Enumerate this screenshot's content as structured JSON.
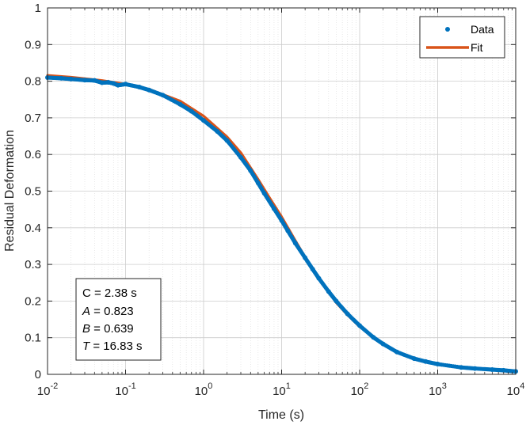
{
  "chart_data": {
    "type": "scatter",
    "xscale": "log",
    "xlabel": "Time (s)",
    "ylabel": "Residual Deformation",
    "xlim": [
      0.01,
      10000
    ],
    "ylim": [
      0,
      1
    ],
    "grid": true,
    "minor_grid": true,
    "x_ticks": [
      {
        "value": 0.01,
        "base": "10",
        "exp": "-2"
      },
      {
        "value": 0.1,
        "base": "10",
        "exp": "-1"
      },
      {
        "value": 1,
        "base": "10",
        "exp": "0"
      },
      {
        "value": 10,
        "base": "10",
        "exp": "1"
      },
      {
        "value": 100,
        "base": "10",
        "exp": "2"
      },
      {
        "value": 1000,
        "base": "10",
        "exp": "3"
      },
      {
        "value": 10000,
        "base": "10",
        "exp": "4"
      }
    ],
    "y_ticks": [
      {
        "value": 0,
        "label": "0"
      },
      {
        "value": 0.1,
        "label": "0.1"
      },
      {
        "value": 0.2,
        "label": "0.2"
      },
      {
        "value": 0.3,
        "label": "0.3"
      },
      {
        "value": 0.4,
        "label": "0.4"
      },
      {
        "value": 0.5,
        "label": "0.5"
      },
      {
        "value": 0.6,
        "label": "0.6"
      },
      {
        "value": 0.7,
        "label": "0.7"
      },
      {
        "value": 0.8,
        "label": "0.8"
      },
      {
        "value": 0.9,
        "label": "0.9"
      },
      {
        "value": 1,
        "label": "1"
      }
    ],
    "legend_position": "top-right",
    "series": [
      {
        "name": "Data",
        "style": "markers",
        "color": "#0072BD",
        "points": [
          [
            0.01,
            0.81
          ],
          [
            0.015,
            0.808
          ],
          [
            0.02,
            0.806
          ],
          [
            0.03,
            0.803
          ],
          [
            0.04,
            0.802
          ],
          [
            0.05,
            0.796
          ],
          [
            0.06,
            0.797
          ],
          [
            0.07,
            0.794
          ],
          [
            0.08,
            0.789
          ],
          [
            0.1,
            0.792
          ],
          [
            0.15,
            0.784
          ],
          [
            0.2,
            0.776
          ],
          [
            0.3,
            0.762
          ],
          [
            0.5,
            0.737
          ],
          [
            0.7,
            0.718
          ],
          [
            1,
            0.693
          ],
          [
            1.5,
            0.663
          ],
          [
            2,
            0.638
          ],
          [
            3,
            0.592
          ],
          [
            4,
            0.556
          ],
          [
            5,
            0.522
          ],
          [
            6,
            0.494
          ],
          [
            8,
            0.452
          ],
          [
            10,
            0.42
          ],
          [
            12,
            0.392
          ],
          [
            15,
            0.358
          ],
          [
            20,
            0.318
          ],
          [
            25,
            0.287
          ],
          [
            30,
            0.262
          ],
          [
            40,
            0.226
          ],
          [
            50,
            0.2
          ],
          [
            70,
            0.165
          ],
          [
            100,
            0.133
          ],
          [
            150,
            0.101
          ],
          [
            200,
            0.083
          ],
          [
            300,
            0.061
          ],
          [
            500,
            0.043
          ],
          [
            700,
            0.035
          ],
          [
            1000,
            0.028
          ],
          [
            2000,
            0.019
          ],
          [
            3000,
            0.016
          ],
          [
            5000,
            0.013
          ],
          [
            7000,
            0.011
          ],
          [
            10000,
            0.008
          ]
        ]
      },
      {
        "name": "Fit",
        "style": "line",
        "color": "#D95319",
        "points": [
          [
            0.01,
            0.816
          ],
          [
            0.02,
            0.811
          ],
          [
            0.05,
            0.802
          ],
          [
            0.1,
            0.792
          ],
          [
            0.2,
            0.778
          ],
          [
            0.5,
            0.746
          ],
          [
            1,
            0.705
          ],
          [
            2,
            0.648
          ],
          [
            3,
            0.605
          ],
          [
            5,
            0.532
          ],
          [
            7,
            0.482
          ],
          [
            10,
            0.43
          ],
          [
            15,
            0.365
          ],
          [
            20,
            0.32
          ],
          [
            30,
            0.262
          ],
          [
            50,
            0.196
          ],
          [
            70,
            0.162
          ],
          [
            100,
            0.13
          ],
          [
            200,
            0.082
          ],
          [
            300,
            0.062
          ],
          [
            500,
            0.043
          ],
          [
            1000,
            0.028
          ],
          [
            2000,
            0.019
          ],
          [
            5000,
            0.012
          ],
          [
            10000,
            0.009
          ]
        ]
      }
    ],
    "annotation": [
      {
        "name": "C",
        "italic": false,
        "text": "C = 2.38 s"
      },
      {
        "name": "A",
        "italic": true,
        "text": " = 0.823"
      },
      {
        "name": "B",
        "italic": true,
        "text": " = 0.639"
      },
      {
        "name": "T",
        "italic": true,
        "text": " = 16.83 s"
      }
    ]
  }
}
